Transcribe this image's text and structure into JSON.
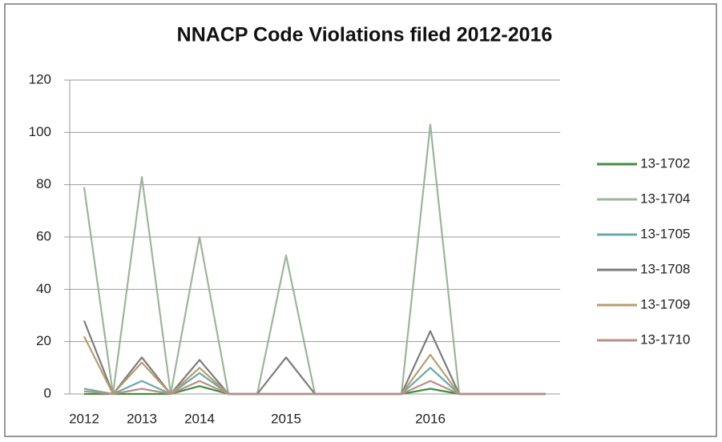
{
  "chart_data": {
    "type": "line",
    "title": "NNACP Code Violations filed 2012-2016",
    "categories": [
      "2012",
      null,
      "2013",
      null,
      "2014",
      null,
      null,
      "2015",
      null,
      null,
      null,
      null,
      "2016",
      null,
      null,
      null,
      null
    ],
    "ylim": [
      0,
      120
    ],
    "yticks": [
      0,
      20,
      40,
      60,
      80,
      100,
      120
    ],
    "grid": true,
    "legend": "right",
    "series": [
      {
        "name": "13-1702",
        "color": "#3f8f3f",
        "values": [
          0,
          0,
          0,
          0,
          3,
          0,
          0,
          0,
          0,
          0,
          0,
          0,
          2,
          0,
          0,
          0,
          0
        ]
      },
      {
        "name": "13-1704",
        "color": "#9db59a",
        "values": [
          79,
          0,
          83,
          0,
          60,
          0,
          0,
          53,
          0,
          0,
          0,
          0,
          103,
          0,
          0,
          0,
          0
        ]
      },
      {
        "name": "13-1705",
        "color": "#6aa9aa",
        "values": [
          2,
          0,
          5,
          0,
          8,
          0,
          0,
          0,
          0,
          0,
          0,
          0,
          10,
          0,
          0,
          0,
          0
        ]
      },
      {
        "name": "13-1708",
        "color": "#7c7c7c",
        "values": [
          28,
          0,
          14,
          0,
          13,
          0,
          0,
          14,
          0,
          0,
          0,
          0,
          24,
          0,
          0,
          0,
          0
        ]
      },
      {
        "name": "13-1709",
        "color": "#b89d6e",
        "values": [
          22,
          0,
          12,
          0,
          10,
          0,
          0,
          0,
          0,
          0,
          0,
          0,
          15,
          0,
          0,
          0,
          0
        ]
      },
      {
        "name": "13-1710",
        "color": "#bb8c8a",
        "values": [
          1,
          0,
          2,
          0,
          5,
          0,
          0,
          0,
          0,
          0,
          0,
          0,
          5,
          0,
          0,
          0,
          0
        ]
      }
    ]
  }
}
